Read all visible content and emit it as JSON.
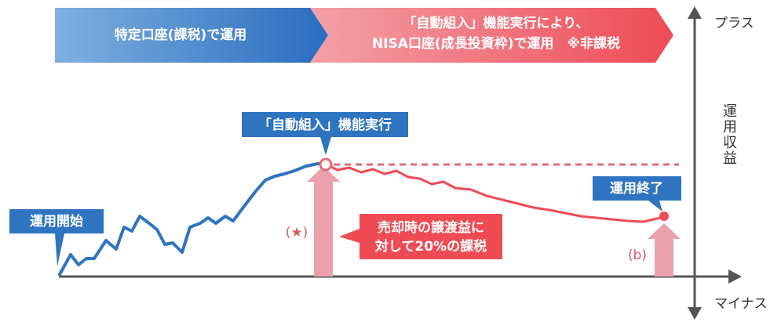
{
  "banner": {
    "left": "特定口座(課税)で運用",
    "right_line1": "「自動組入」機能実行により、",
    "right_line2": "NISA口座(成長投資枠)で運用　※非課税"
  },
  "axis": {
    "top": "プラス",
    "side": "運用収益",
    "bottom": "マイナス"
  },
  "callouts": {
    "peak": "「自動組入」機能実行",
    "start": "運用開始",
    "end": "運用終了"
  },
  "labels": {
    "star": "(★)",
    "b": "(b)"
  },
  "tax_box": {
    "line1": "売却時の譲渡益に",
    "line2": "対して20%の課税"
  }
}
